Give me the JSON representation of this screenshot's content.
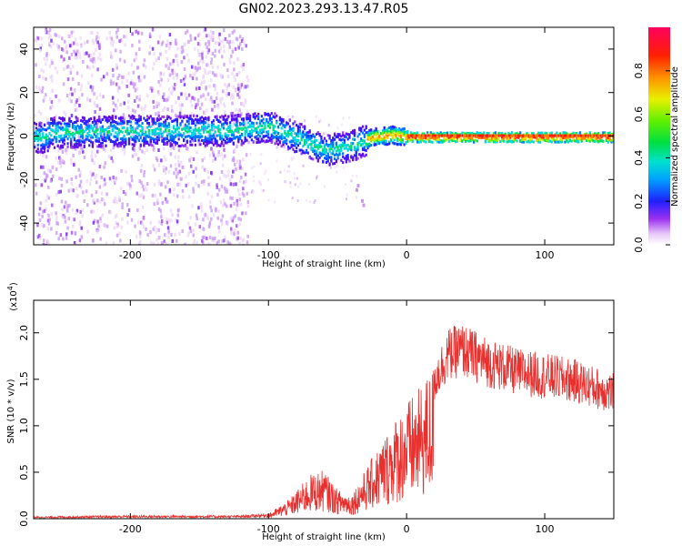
{
  "title": "GN02.2023.293.13.47.R05",
  "chart_data": [
    {
      "type": "heatmap",
      "xlabel": "Height of straight line (km)",
      "ylabel": "Frequency (Hz)",
      "xlim": [
        -270,
        150
      ],
      "ylim": [
        -50,
        50
      ],
      "xticks": [
        -200,
        -100,
        0,
        100
      ],
      "yticks": [
        -40,
        -20,
        0,
        20,
        40
      ],
      "colorbar": {
        "label": "Normalized spectral amplitude",
        "ticks": [
          "0.0",
          "0.2",
          "0.4",
          "0.6",
          "0.8"
        ],
        "range": [
          0,
          1
        ]
      },
      "ridge": {
        "description_points": [
          {
            "x": -260,
            "y": 2
          },
          {
            "x": -200,
            "y": 3
          },
          {
            "x": -130,
            "y": 3
          },
          {
            "x": -100,
            "y": 5
          },
          {
            "x": -80,
            "y": 0
          },
          {
            "x": -60,
            "y": -6
          },
          {
            "x": -40,
            "y": -4
          },
          {
            "x": -25,
            "y": 0
          },
          {
            "x": -10,
            "y": 1
          },
          {
            "x": 0,
            "y": 0
          },
          {
            "x": 150,
            "y": 0
          }
        ]
      }
    },
    {
      "type": "line",
      "xlabel": "Height of straight line (km)",
      "ylabel": "SNR (10 * v/v)",
      "multiplier": "(x10",
      "multiplier_exp": "4",
      "multiplier_close": ")",
      "xlim": [
        -270,
        150
      ],
      "ylim": [
        0,
        2.35
      ],
      "xticks": [
        -200,
        -100,
        0,
        100
      ],
      "yticks": [
        "0.0",
        "0.5",
        "1.0",
        "1.5",
        "2.0"
      ],
      "series": [
        {
          "color": "#e8302e",
          "envelope": [
            {
              "x": -270,
              "y": 0.02
            },
            {
              "x": -200,
              "y": 0.03
            },
            {
              "x": -120,
              "y": 0.03
            },
            {
              "x": -100,
              "y": 0.05
            },
            {
              "x": -85,
              "y": 0.2
            },
            {
              "x": -70,
              "y": 0.45
            },
            {
              "x": -60,
              "y": 0.5
            },
            {
              "x": -50,
              "y": 0.3
            },
            {
              "x": -40,
              "y": 0.25
            },
            {
              "x": -30,
              "y": 0.5
            },
            {
              "x": -20,
              "y": 0.75
            },
            {
              "x": -10,
              "y": 1.0
            },
            {
              "x": 0,
              "y": 1.2
            },
            {
              "x": 10,
              "y": 1.35
            },
            {
              "x": 20,
              "y": 1.6
            },
            {
              "x": 30,
              "y": 1.9
            },
            {
              "x": 40,
              "y": 1.95
            },
            {
              "x": 60,
              "y": 1.8
            },
            {
              "x": 80,
              "y": 1.7
            },
            {
              "x": 100,
              "y": 1.65
            },
            {
              "x": 120,
              "y": 1.6
            },
            {
              "x": 150,
              "y": 1.45
            }
          ]
        }
      ]
    }
  ]
}
